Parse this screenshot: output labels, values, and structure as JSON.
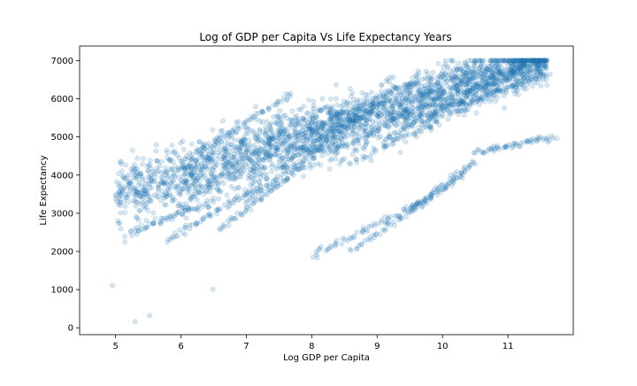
{
  "chart_data": {
    "type": "scatter",
    "title": "Log of GDP per Capita Vs Life Expectancy Years",
    "xlabel": "Log GDP per Capita",
    "ylabel": "Life Expectancy",
    "xlim": [
      4.45,
      12.0
    ],
    "ylim": [
      -180,
      7380
    ],
    "xticks": [
      5,
      6,
      7,
      8,
      9,
      10,
      11
    ],
    "yticks": [
      0,
      1000,
      2000,
      3000,
      4000,
      5000,
      6000,
      7000
    ],
    "grid": false,
    "legend": "none",
    "point_color": "#1f77b4",
    "point_alpha": 0.18,
    "outliers": [
      {
        "x": 5.3,
        "y": 160
      },
      {
        "x": 5.52,
        "y": 320
      },
      {
        "x": 4.95,
        "y": 1110
      },
      {
        "x": 6.49,
        "y": 1010
      }
    ],
    "trajectories": [
      {
        "x0": 5.2,
        "x1": 6.5,
        "y0": 2500,
        "y1": 3300
      },
      {
        "x0": 5.8,
        "x1": 7.2,
        "y0": 2300,
        "y1": 3700
      },
      {
        "x0": 6.0,
        "x1": 7.6,
        "y0": 3200,
        "y1": 5200
      },
      {
        "x0": 6.2,
        "x1": 7.7,
        "y0": 4500,
        "y1": 6150
      },
      {
        "x0": 6.6,
        "x1": 7.9,
        "y0": 2600,
        "y1": 4300
      },
      {
        "x0": 7.0,
        "x1": 8.6,
        "y0": 3300,
        "y1": 5300
      },
      {
        "x0": 7.5,
        "x1": 9.0,
        "y0": 4200,
        "y1": 5900
      },
      {
        "x0": 7.8,
        "x1": 9.6,
        "y0": 5000,
        "y1": 6500
      },
      {
        "x0": 8.3,
        "x1": 10.0,
        "y0": 4600,
        "y1": 6100
      },
      {
        "x0": 8.6,
        "x1": 10.6,
        "y0": 4300,
        "y1": 6000
      },
      {
        "x0": 9.1,
        "x1": 10.8,
        "y0": 4900,
        "y1": 6600
      },
      {
        "x0": 9.6,
        "x1": 11.3,
        "y0": 5300,
        "y1": 6900
      },
      {
        "x0": 10.2,
        "x1": 11.6,
        "y0": 5800,
        "y1": 6700
      },
      {
        "x0": 8.0,
        "x1": 9.7,
        "y0": 1900,
        "y1": 3300
      },
      {
        "x0": 8.6,
        "x1": 10.3,
        "y0": 2000,
        "y1": 4000
      },
      {
        "x0": 9.5,
        "x1": 10.5,
        "y0": 3100,
        "y1": 4300
      },
      {
        "x0": 10.5,
        "x1": 11.7,
        "y0": 4600,
        "y1": 5000
      }
    ]
  }
}
